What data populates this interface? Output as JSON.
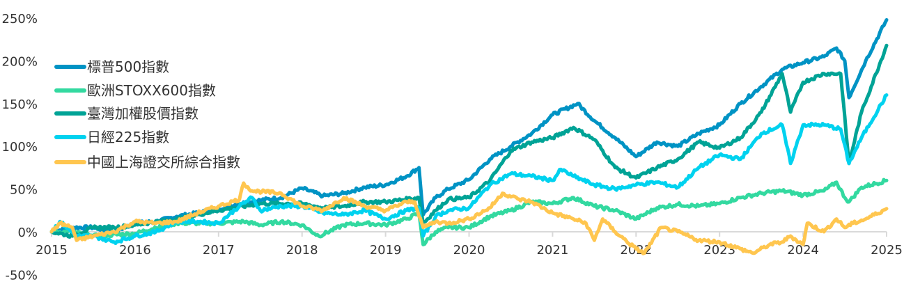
{
  "chart_data": {
    "type": "line",
    "title": "",
    "xlabel": "",
    "ylabel": "",
    "xlim": [
      2015,
      2025
    ],
    "ylim": [
      -50,
      250
    ],
    "x_ticks": [
      "2015",
      "2016",
      "2017",
      "2018",
      "2019",
      "2020",
      "2021",
      "2022",
      "2023",
      "2024",
      "2025"
    ],
    "y_ticks": [
      "250%",
      "200%",
      "150%",
      "100%",
      "50%",
      "0%",
      "-50%"
    ],
    "y_tick_values": [
      250,
      200,
      150,
      100,
      50,
      0,
      -50
    ],
    "legend_position": "top-left",
    "series": [
      {
        "name": "標普500指數",
        "color": "#0093c4",
        "points": [
          [
            2015,
            0
          ],
          [
            2015.25,
            5
          ],
          [
            2015.5,
            5
          ],
          [
            2015.75,
            0
          ],
          [
            2016,
            10
          ],
          [
            2016.25,
            12
          ],
          [
            2016.5,
            18
          ],
          [
            2016.75,
            22
          ],
          [
            2017,
            27
          ],
          [
            2017.25,
            33
          ],
          [
            2017.5,
            37
          ],
          [
            2017.75,
            40
          ],
          [
            2018,
            51
          ],
          [
            2018.25,
            42
          ],
          [
            2018.5,
            45
          ],
          [
            2018.75,
            52
          ],
          [
            2019,
            55
          ],
          [
            2019.25,
            65
          ],
          [
            2019.4,
            75
          ],
          [
            2019.45,
            20
          ],
          [
            2019.6,
            40
          ],
          [
            2019.75,
            50
          ],
          [
            2020,
            61
          ],
          [
            2020.25,
            85
          ],
          [
            2020.5,
            100
          ],
          [
            2020.75,
            115
          ],
          [
            2021,
            137
          ],
          [
            2021.3,
            150
          ],
          [
            2021.5,
            130
          ],
          [
            2021.75,
            110
          ],
          [
            2022,
            88
          ],
          [
            2022.25,
            105
          ],
          [
            2022.5,
            100
          ],
          [
            2022.75,
            115
          ],
          [
            2023,
            125
          ],
          [
            2023.25,
            150
          ],
          [
            2023.5,
            170
          ],
          [
            2023.75,
            190
          ],
          [
            2024,
            198
          ],
          [
            2024.25,
            205
          ],
          [
            2024.4,
            215
          ],
          [
            2024.5,
            200
          ],
          [
            2024.55,
            157
          ],
          [
            2024.75,
            200
          ],
          [
            2025,
            248
          ]
        ]
      },
      {
        "name": "歐洲STOXX600指數",
        "color": "#33d9a0",
        "points": [
          [
            2015,
            0
          ],
          [
            2015.25,
            0
          ],
          [
            2015.5,
            -5
          ],
          [
            2016,
            -2
          ],
          [
            2016.25,
            5
          ],
          [
            2016.5,
            10
          ],
          [
            2017,
            10
          ],
          [
            2017.3,
            12
          ],
          [
            2017.5,
            8
          ],
          [
            2017.75,
            12
          ],
          [
            2018,
            8
          ],
          [
            2018.2,
            -5
          ],
          [
            2018.5,
            8
          ],
          [
            2018.75,
            10
          ],
          [
            2019,
            8
          ],
          [
            2019.25,
            15
          ],
          [
            2019.4,
            22
          ],
          [
            2019.45,
            -15
          ],
          [
            2019.6,
            0
          ],
          [
            2019.75,
            5
          ],
          [
            2020,
            5
          ],
          [
            2020.25,
            18
          ],
          [
            2020.5,
            25
          ],
          [
            2020.75,
            35
          ],
          [
            2021,
            33
          ],
          [
            2021.25,
            40
          ],
          [
            2021.5,
            30
          ],
          [
            2021.75,
            25
          ],
          [
            2022,
            15
          ],
          [
            2022.25,
            28
          ],
          [
            2022.5,
            32
          ],
          [
            2022.75,
            30
          ],
          [
            2023,
            33
          ],
          [
            2023.25,
            40
          ],
          [
            2023.5,
            45
          ],
          [
            2023.75,
            48
          ],
          [
            2024,
            43
          ],
          [
            2024.25,
            48
          ],
          [
            2024.4,
            58
          ],
          [
            2024.5,
            40
          ],
          [
            2024.55,
            35
          ],
          [
            2024.7,
            52
          ],
          [
            2025,
            60
          ]
        ]
      },
      {
        "name": "臺灣加權股價指數",
        "color": "#00a396",
        "points": [
          [
            2015,
            0
          ],
          [
            2015.25,
            -5
          ],
          [
            2015.5,
            5
          ],
          [
            2015.75,
            5
          ],
          [
            2016,
            8
          ],
          [
            2016.5,
            15
          ],
          [
            2017,
            25
          ],
          [
            2017.5,
            33
          ],
          [
            2018,
            33
          ],
          [
            2018.25,
            28
          ],
          [
            2018.5,
            30
          ],
          [
            2018.75,
            35
          ],
          [
            2019,
            35
          ],
          [
            2019.4,
            40
          ],
          [
            2019.45,
            10
          ],
          [
            2019.6,
            25
          ],
          [
            2019.75,
            38
          ],
          [
            2020,
            40
          ],
          [
            2020.25,
            60
          ],
          [
            2020.5,
            95
          ],
          [
            2020.75,
            105
          ],
          [
            2021,
            110
          ],
          [
            2021.25,
            122
          ],
          [
            2021.5,
            108
          ],
          [
            2021.75,
            75
          ],
          [
            2022,
            63
          ],
          [
            2022.25,
            75
          ],
          [
            2022.5,
            85
          ],
          [
            2022.75,
            105
          ],
          [
            2023,
            98
          ],
          [
            2023.25,
            110
          ],
          [
            2023.5,
            140
          ],
          [
            2023.75,
            185
          ],
          [
            2023.85,
            140
          ],
          [
            2024,
            175
          ],
          [
            2024.25,
            185
          ],
          [
            2024.45,
            185
          ],
          [
            2024.55,
            80
          ],
          [
            2024.7,
            140
          ],
          [
            2025,
            218
          ]
        ]
      },
      {
        "name": "日經225指數",
        "color": "#00d2ef",
        "points": [
          [
            2015,
            0
          ],
          [
            2015.1,
            12
          ],
          [
            2015.3,
            -5
          ],
          [
            2015.5,
            -5
          ],
          [
            2015.75,
            -12
          ],
          [
            2016,
            -5
          ],
          [
            2016.25,
            0
          ],
          [
            2016.5,
            12
          ],
          [
            2016.75,
            12
          ],
          [
            2017,
            10
          ],
          [
            2017.25,
            30
          ],
          [
            2017.4,
            40
          ],
          [
            2017.5,
            25
          ],
          [
            2017.75,
            30
          ],
          [
            2018,
            30
          ],
          [
            2018.25,
            22
          ],
          [
            2018.5,
            20
          ],
          [
            2018.75,
            25
          ],
          [
            2019,
            15
          ],
          [
            2019.25,
            25
          ],
          [
            2019.4,
            28
          ],
          [
            2019.45,
            -5
          ],
          [
            2019.6,
            18
          ],
          [
            2019.75,
            25
          ],
          [
            2020,
            28
          ],
          [
            2020.25,
            55
          ],
          [
            2020.5,
            68
          ],
          [
            2020.75,
            65
          ],
          [
            2021,
            60
          ],
          [
            2021.1,
            73
          ],
          [
            2021.25,
            65
          ],
          [
            2021.5,
            55
          ],
          [
            2021.75,
            50
          ],
          [
            2022,
            55
          ],
          [
            2022.25,
            58
          ],
          [
            2022.5,
            52
          ],
          [
            2022.75,
            75
          ],
          [
            2023,
            90
          ],
          [
            2023.25,
            85
          ],
          [
            2023.5,
            115
          ],
          [
            2023.75,
            125
          ],
          [
            2023.85,
            80
          ],
          [
            2024,
            125
          ],
          [
            2024.25,
            125
          ],
          [
            2024.45,
            120
          ],
          [
            2024.55,
            80
          ],
          [
            2024.7,
            110
          ],
          [
            2025,
            160
          ]
        ]
      },
      {
        "name": "中國上海證交所綜合指數",
        "color": "#ffc64f",
        "points": [
          [
            2015,
            0
          ],
          [
            2015.1,
            10
          ],
          [
            2015.25,
            5
          ],
          [
            2015.3,
            -10
          ],
          [
            2015.5,
            -5
          ],
          [
            2015.75,
            0
          ],
          [
            2016,
            12
          ],
          [
            2016.25,
            10
          ],
          [
            2016.5,
            12
          ],
          [
            2016.75,
            22
          ],
          [
            2017,
            30
          ],
          [
            2017.25,
            38
          ],
          [
            2017.3,
            57
          ],
          [
            2017.4,
            48
          ],
          [
            2017.75,
            45
          ],
          [
            2018,
            30
          ],
          [
            2018.25,
            25
          ],
          [
            2018.5,
            40
          ],
          [
            2018.75,
            30
          ],
          [
            2019,
            25
          ],
          [
            2019.25,
            35
          ],
          [
            2019.35,
            35
          ],
          [
            2019.45,
            5
          ],
          [
            2019.6,
            12
          ],
          [
            2019.75,
            10
          ],
          [
            2020,
            15
          ],
          [
            2020.25,
            28
          ],
          [
            2020.4,
            45
          ],
          [
            2020.6,
            38
          ],
          [
            2020.75,
            35
          ],
          [
            2021,
            22
          ],
          [
            2021.25,
            15
          ],
          [
            2021.4,
            10
          ],
          [
            2021.5,
            -10
          ],
          [
            2021.6,
            15
          ],
          [
            2021.75,
            0
          ],
          [
            2022,
            -20
          ],
          [
            2022.1,
            -25
          ],
          [
            2022.3,
            5
          ],
          [
            2022.5,
            0
          ],
          [
            2022.75,
            -10
          ],
          [
            2023,
            -12
          ],
          [
            2023.25,
            -20
          ],
          [
            2023.4,
            -25
          ],
          [
            2023.6,
            -15
          ],
          [
            2023.75,
            -12
          ],
          [
            2023.85,
            -5
          ],
          [
            2024,
            -15
          ],
          [
            2024.05,
            10
          ],
          [
            2024.25,
            0
          ],
          [
            2024.4,
            15
          ],
          [
            2024.5,
            5
          ],
          [
            2024.6,
            10
          ],
          [
            2024.75,
            15
          ],
          [
            2025,
            27
          ]
        ]
      }
    ]
  }
}
